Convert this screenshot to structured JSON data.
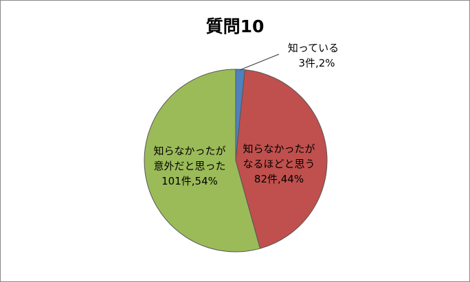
{
  "chart_data": {
    "type": "pie",
    "title": "質問10",
    "categories": [
      "知っている",
      "知らなかったが\nなるほどと思う",
      "知らなかったが\n意外だと思った"
    ],
    "values": [
      3,
      82,
      101
    ],
    "value_labels": [
      "3件,2%",
      "82件,44%",
      "101件,54%"
    ],
    "colors": [
      "#4f81bd",
      "#c0504d",
      "#9bbb59"
    ]
  }
}
